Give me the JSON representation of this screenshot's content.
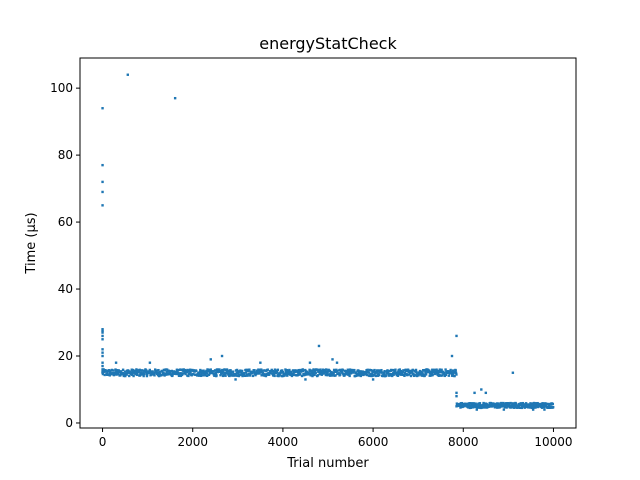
{
  "chart_data": {
    "type": "scatter",
    "title": "energyStatCheck",
    "xlabel": "Trial number",
    "ylabel": "Time (µs)",
    "xlim": [
      -500,
      10500
    ],
    "ylim": [
      -1.5,
      109
    ],
    "xticks": [
      0,
      2000,
      4000,
      6000,
      8000,
      10000
    ],
    "yticks": [
      0,
      20,
      40,
      60,
      80,
      100
    ],
    "grid": false,
    "legend": "none",
    "marker_color": "#1f77b4",
    "bands": [
      {
        "x_start": 0,
        "x_end": 7850,
        "y_low": 14,
        "y_high": 16,
        "step": 8
      },
      {
        "x_start": 7850,
        "x_end": 10000,
        "y_low": 4.5,
        "y_high": 6,
        "step": 8
      }
    ],
    "points": [
      [
        0,
        65
      ],
      [
        0,
        69
      ],
      [
        0,
        72
      ],
      [
        0,
        77
      ],
      [
        0,
        94
      ],
      [
        0,
        20
      ],
      [
        0,
        21
      ],
      [
        0,
        22
      ],
      [
        0,
        25
      ],
      [
        0,
        26
      ],
      [
        0,
        27
      ],
      [
        0,
        27.5
      ],
      [
        0,
        28
      ],
      [
        0,
        15
      ],
      [
        0,
        16
      ],
      [
        0,
        17
      ],
      [
        0,
        18
      ],
      [
        560,
        104
      ],
      [
        1610,
        97
      ],
      [
        300,
        18
      ],
      [
        1050,
        18
      ],
      [
        2400,
        19
      ],
      [
        2650,
        20
      ],
      [
        3500,
        18
      ],
      [
        4600,
        18
      ],
      [
        4800,
        23
      ],
      [
        5100,
        19
      ],
      [
        5200,
        18
      ],
      [
        7750,
        20
      ],
      [
        7850,
        26
      ],
      [
        7850,
        9
      ],
      [
        7850,
        8
      ],
      [
        8250,
        9
      ],
      [
        8400,
        10
      ],
      [
        8500,
        9
      ],
      [
        9100,
        15
      ],
      [
        2950,
        13
      ],
      [
        4500,
        13
      ],
      [
        6000,
        13
      ],
      [
        8300,
        4
      ],
      [
        8900,
        4
      ],
      [
        9550,
        4
      ],
      [
        9800,
        4
      ]
    ]
  }
}
